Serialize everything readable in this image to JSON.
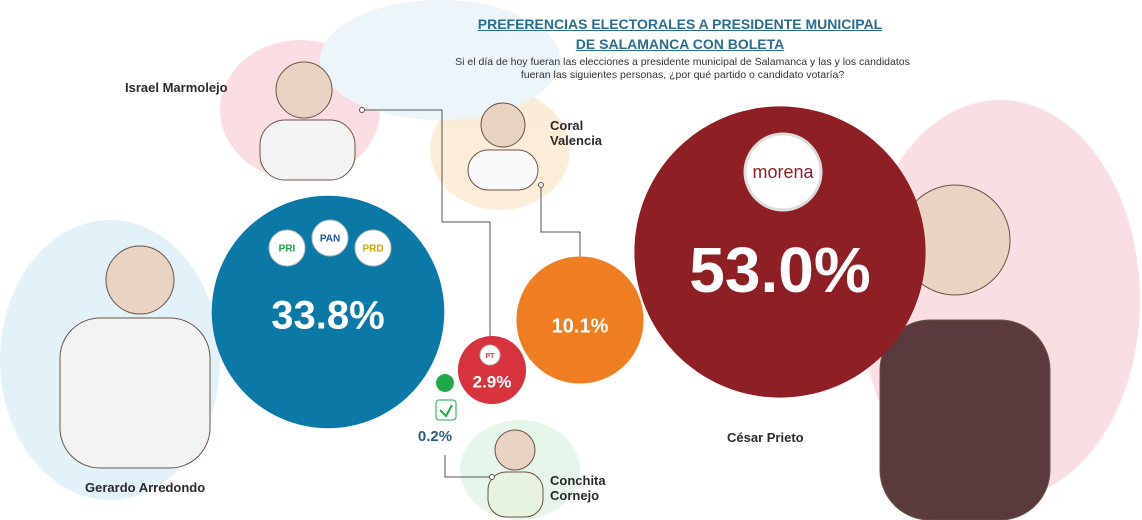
{
  "chart_data": {
    "type": "bubble",
    "title": "PREFERENCIAS ELECTORALES A PRESIDENTE MUNICIPAL DE SALAMANCA CON BOLETA",
    "subtitle": "Si el día de hoy fueran las elecciones a presidente municipal de Salamanca y las y los candidatos fueran las siguientes personas, ¿por qué partido o candidato votaría?",
    "categories": [
      "Gerardo Arredondo",
      "Israel Marmolejo",
      "Coral Valencia",
      "César Prieto",
      "Conchita Cornejo"
    ],
    "values": [
      33.8,
      2.9,
      10.1,
      53.0,
      0.2
    ],
    "value_labels": [
      "33.8%",
      "2.9%",
      "10.1%",
      "53.0%",
      "0.2%"
    ],
    "colors": [
      "#0b78a6",
      "#d7333f",
      "#ef7e22",
      "#8e1f25",
      "#1fa84a"
    ],
    "parties": [
      [
        "PRI",
        "PAN",
        "PRD"
      ],
      [
        "PT"
      ],
      [],
      [
        "morena"
      ],
      []
    ]
  }
}
